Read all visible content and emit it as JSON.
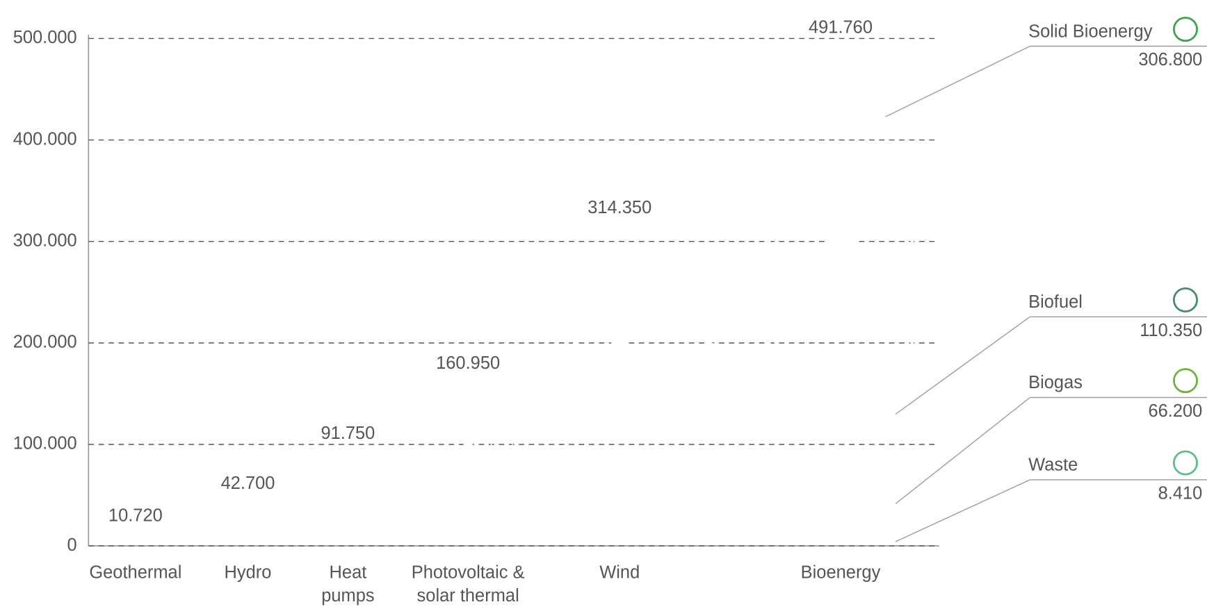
{
  "chart_data": {
    "type": "bar",
    "categories": [
      "Geothermal",
      "Hydro",
      "Heat pumps",
      "Photovoltaic & solar thermal",
      "Wind",
      "Bioenergy"
    ],
    "values": [
      10720,
      42700,
      91750,
      160950,
      314350,
      491760
    ],
    "value_labels": [
      "10.720",
      "42.700",
      "91.750",
      "160.950",
      "314.350",
      "491.760"
    ],
    "color": "#7090c0",
    "ylim": [
      0,
      500000
    ],
    "yticks": [
      0,
      {
        "value": 100000,
        "label": "100.000"
      },
      {
        "value": 200000,
        "label": "200.000"
      },
      {
        "value": 300000,
        "label": "300.000"
      },
      {
        "value": 400000,
        "label": "400.000"
      },
      {
        "value": 500000,
        "label": "500.000"
      }
    ],
    "grid": true,
    "breakdown": [
      {
        "name": "Solid Bioenergy",
        "color": "#3ba350",
        "value": 306800,
        "value_label": "306.800"
      },
      {
        "name": "Biofuel",
        "color": "#4a8a6a",
        "value": 110350,
        "value_label": "110.350"
      },
      {
        "name": "Biogas",
        "color": "#6fb13e",
        "value": 66200,
        "value_label": "66.200"
      },
      {
        "name": "Waste",
        "color": "#5fba8e",
        "value": 8410,
        "value_label": "8.410"
      }
    ]
  }
}
